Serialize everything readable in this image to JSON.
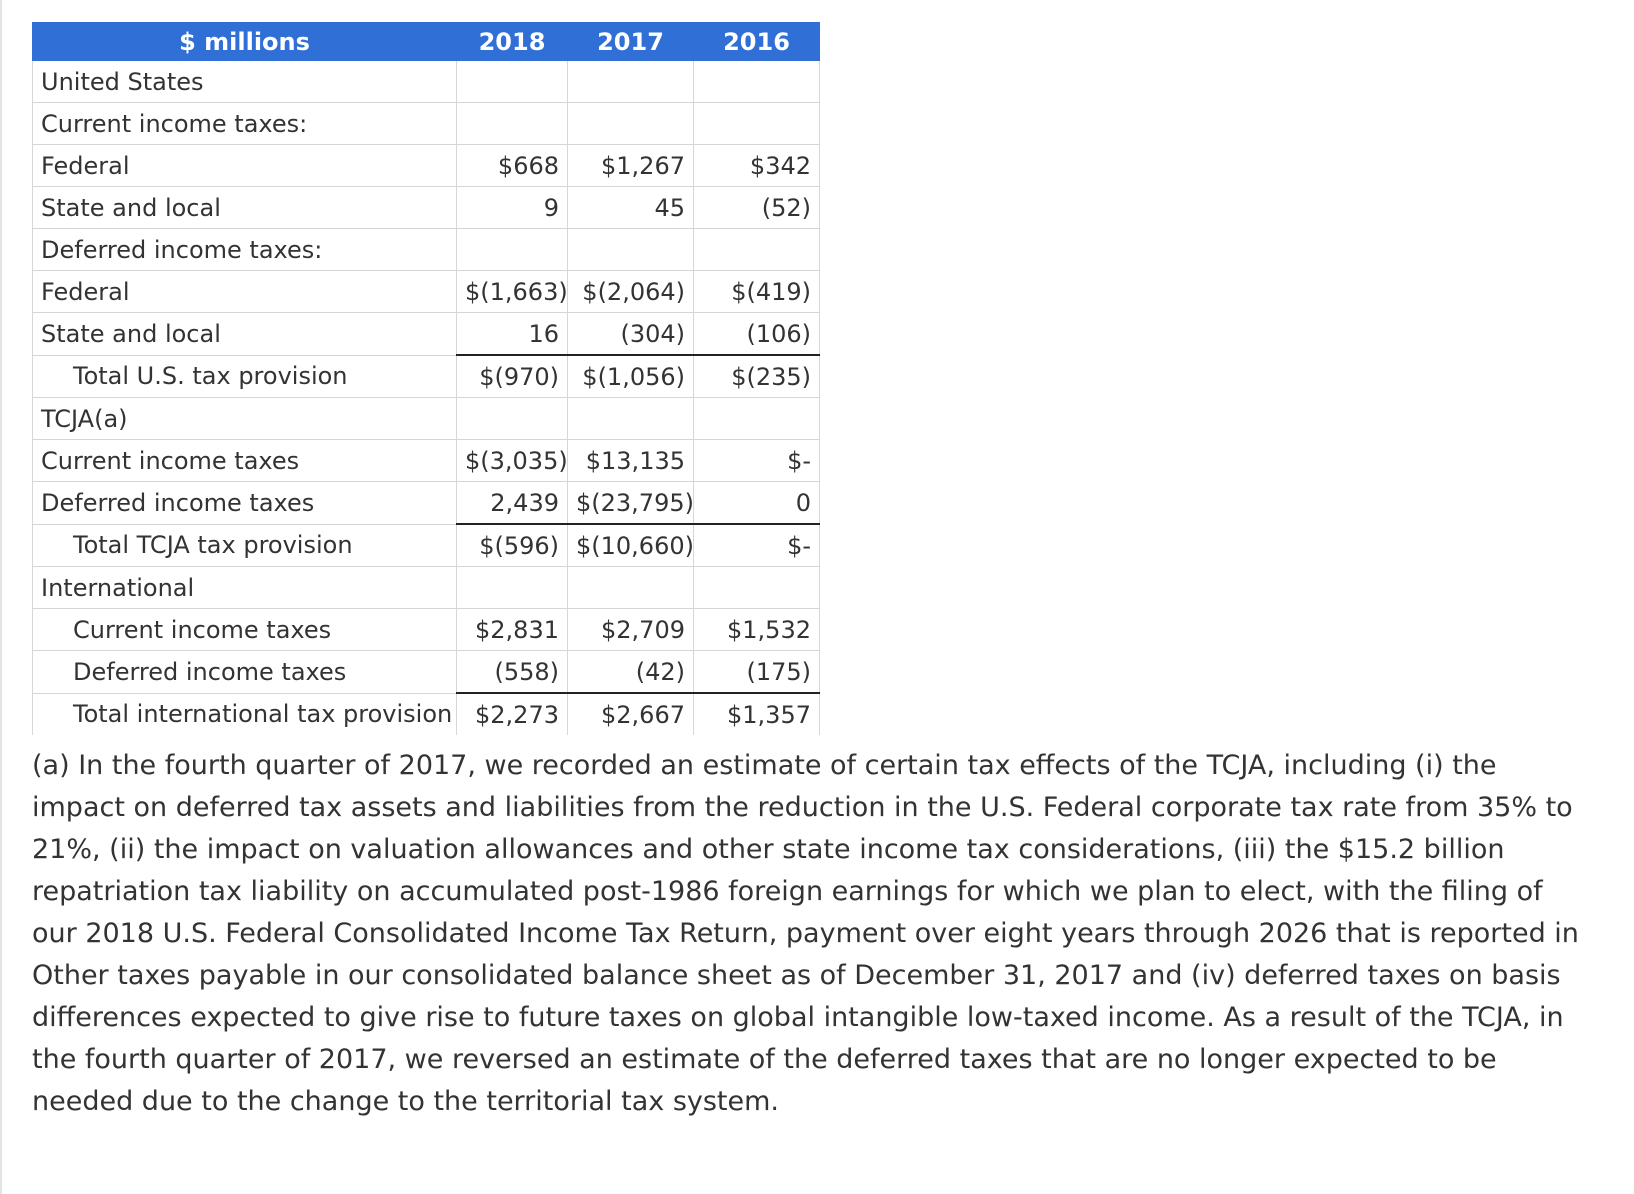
{
  "table": {
    "header": [
      "$ millions",
      "2018",
      "2017",
      "2016"
    ],
    "rows": [
      {
        "label": "United States",
        "values": [
          "",
          "",
          ""
        ]
      },
      {
        "label": "Current income taxes:",
        "values": [
          "",
          "",
          ""
        ]
      },
      {
        "label": "Federal",
        "values": [
          "$668",
          "$1,267",
          "$342"
        ]
      },
      {
        "label": "State and local",
        "values": [
          "9",
          "45",
          "(52)"
        ]
      },
      {
        "label": "Deferred income taxes:",
        "values": [
          "",
          "",
          ""
        ]
      },
      {
        "label": "Federal",
        "values": [
          "$(1,663)",
          "$(2,064)",
          "$(419)"
        ]
      },
      {
        "label": "State and local",
        "values": [
          "16",
          "(304)",
          "(106)"
        ]
      },
      {
        "label": "Total U.S. tax provision",
        "values": [
          "$(970)",
          "$(1,056)",
          "$(235)"
        ]
      },
      {
        "label": "TCJA(a)",
        "values": [
          "",
          "",
          ""
        ]
      },
      {
        "label": "Current income taxes",
        "values": [
          "$(3,035)",
          "$13,135",
          "$-"
        ]
      },
      {
        "label": "Deferred income taxes",
        "values": [
          "2,439",
          "$(23,795)",
          "0"
        ]
      },
      {
        "label": "Total TCJA tax provision",
        "values": [
          "$(596)",
          "$(10,660)",
          "$-"
        ]
      },
      {
        "label": "International",
        "values": [
          "",
          "",
          ""
        ]
      },
      {
        "label": "Current income taxes",
        "values": [
          "$2,831",
          "$2,709",
          "$1,532"
        ]
      },
      {
        "label": "Deferred income taxes",
        "values": [
          "(558)",
          "(42)",
          "(175)"
        ]
      },
      {
        "label": "Total international tax provision",
        "values": [
          "$2,273",
          "$2,667",
          "$1,357"
        ]
      }
    ]
  },
  "footnote": "(a) In the fourth quarter of 2017, we recorded an estimate of certain tax effects of the TCJA, including (i) the impact on deferred tax assets and liabilities from the reduction in the U.S. Federal corporate tax rate from 35% to 21%, (ii) the impact on valuation allowances and other state income tax considerations, (iii) the $15.2 billion repatriation tax liability on accumulated post-1986 foreign earnings for which we plan to elect, with the filing of our 2018 U.S. Federal Consolidated Income Tax Return, payment over eight years through 2026 that is reported in Other taxes payable in our consolidated balance sheet as of December 31, 2017 and (iv) deferred taxes on basis differences expected to give rise to future taxes on global intangible low-taxed income. As a result of the TCJA, in the fourth quarter of 2017, we reversed an estimate of the deferred taxes that are no longer expected to be needed due to the change to the territorial tax system."
}
